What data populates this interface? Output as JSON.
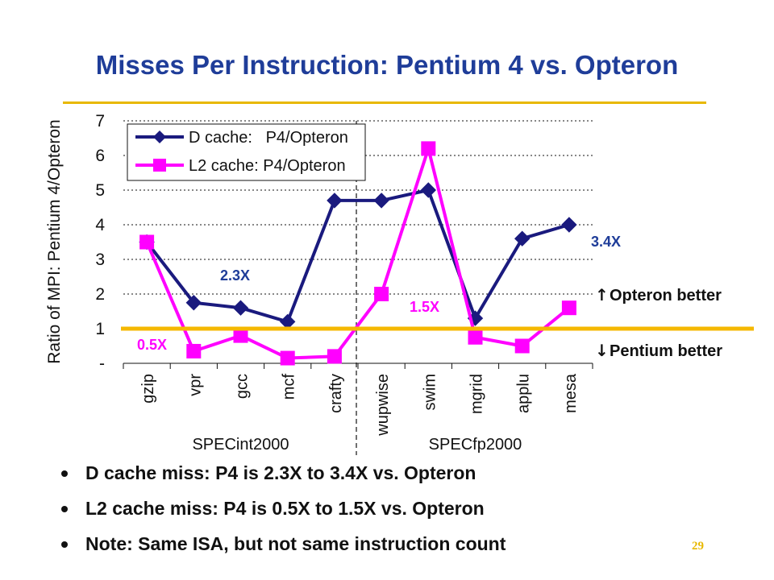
{
  "slide": {
    "title": "Misses Per Instruction: Pentium 4 vs. Opteron",
    "bullets": [
      "D cache miss: P4 is 2.3X to 3.4X vs. Opteron",
      "L2 cache miss: P4 is 0.5X to 1.5X vs. Opteron",
      "Note: Same ISA, but not same instruction count"
    ],
    "page_number": "29"
  },
  "chart_data": {
    "type": "line",
    "title": "",
    "ylabel": "Ratio of MPI: Pentium 4/Opteron",
    "xlabel": "",
    "ylim": [
      0,
      7
    ],
    "yticks": [
      "-",
      "1",
      "2",
      "3",
      "4",
      "5",
      "6",
      "7"
    ],
    "grid": true,
    "legend_position": "top-left",
    "categories": [
      "gzip",
      "vpr",
      "gcc",
      "mcf",
      "crafty",
      "wupwise",
      "swim",
      "mgrid",
      "applu",
      "mesa"
    ],
    "groups": [
      {
        "label": "SPECint2000",
        "categories": [
          "gzip",
          "vpr",
          "gcc",
          "mcf",
          "crafty"
        ]
      },
      {
        "label": "SPECfp2000",
        "categories": [
          "wupwise",
          "swim",
          "mgrid",
          "applu",
          "mesa"
        ]
      }
    ],
    "series": [
      {
        "name": "D cache:   P4/Opteron",
        "color": "#1a1a7e",
        "marker": "diamond",
        "values": [
          3.5,
          1.75,
          1.6,
          1.2,
          4.7,
          4.7,
          5.0,
          1.3,
          3.6,
          4.0
        ]
      },
      {
        "name": "L2 cache: P4/Opteron",
        "color": "#ff00ff",
        "marker": "square",
        "values": [
          3.5,
          0.35,
          0.8,
          0.15,
          0.2,
          2.0,
          6.2,
          0.75,
          0.5,
          1.6
        ]
      }
    ],
    "reference_line": {
      "value": 1,
      "color": "#f5b800"
    },
    "annotations": [
      {
        "text": "2.3X",
        "color": "#1f3d99"
      },
      {
        "text": "3.4X",
        "color": "#1f3d99"
      },
      {
        "text": "0.5X",
        "color": "#ff00ff"
      },
      {
        "text": "1.5X",
        "color": "#ff00ff"
      }
    ],
    "side_labels": [
      {
        "arrow": "↑",
        "text": "Opteron better"
      },
      {
        "arrow": "↓",
        "text": "Pentium better"
      }
    ]
  }
}
